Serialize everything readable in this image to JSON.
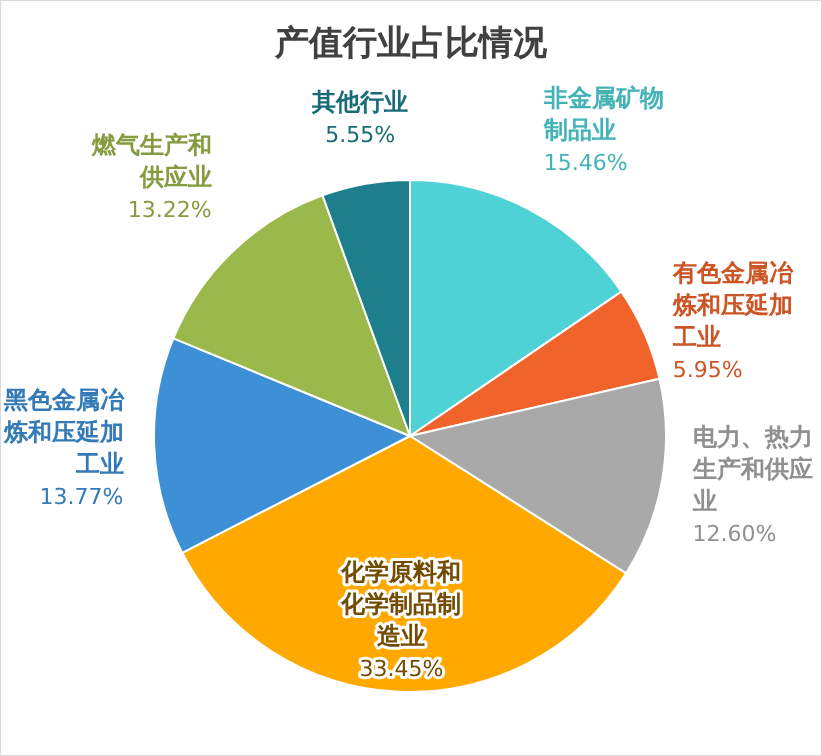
{
  "chart_data": {
    "type": "pie",
    "title": "产值行业占比情况",
    "categories": [
      "非金属矿物制品业",
      "有色金属冶炼和压延加工业",
      "电力、热力生产和供应业",
      "化学原料和化学制品制造业",
      "黑色金属冶炼和压延加工业",
      "燃气生产和供应业",
      "其他行业"
    ],
    "values": [
      15.46,
      5.95,
      12.6,
      33.45,
      13.77,
      13.22,
      5.55
    ],
    "colors": [
      "#4fd2d6",
      "#f0642c",
      "#a9a9a9",
      "#ffa800",
      "#3d8fd6",
      "#9bb84a",
      "#1d7f8c"
    ],
    "value_labels": [
      "15.46%",
      "5.95%",
      "12.60%",
      "33.45%",
      "13.77%",
      "13.22%",
      "5.55%"
    ],
    "legend": false
  }
}
